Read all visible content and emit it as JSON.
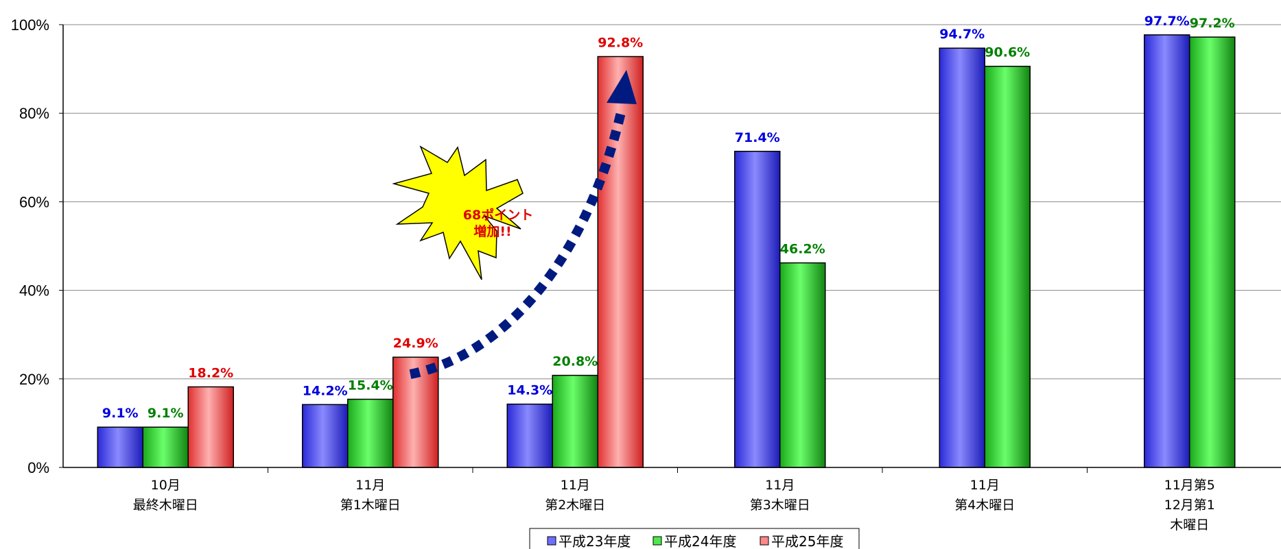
{
  "chart_data": {
    "type": "bar",
    "categories": [
      [
        "10月",
        "最終木曜日"
      ],
      [
        "11月",
        "第1木曜日"
      ],
      [
        "11月",
        "第2木曜日"
      ],
      [
        "11月",
        "第3木曜日"
      ],
      [
        "11月",
        "第4木曜日"
      ],
      [
        "11月第5",
        "12月第1",
        "木曜日"
      ]
    ],
    "series": [
      {
        "name": "平成23年度",
        "color": "#6f6fff",
        "values": [
          9.1,
          14.2,
          14.3,
          71.4,
          94.7,
          97.7
        ],
        "labels": [
          "9.1%",
          "14.2%",
          "14.3%",
          "71.4%",
          "94.7%",
          "97.7%"
        ],
        "label_color": "#0000dd"
      },
      {
        "name": "平成24年度",
        "color": "#4ce84c",
        "values": [
          9.1,
          15.4,
          20.8,
          46.2,
          90.6,
          97.2
        ],
        "labels": [
          "9.1%",
          "15.4%",
          "20.8%",
          "46.2%",
          "90.6%",
          "97.2%"
        ],
        "label_color": "#008000"
      },
      {
        "name": "平成25年度",
        "color": "#ff8888",
        "values": [
          18.2,
          24.9,
          92.8,
          null,
          null,
          null
        ],
        "labels": [
          "18.2%",
          "24.9%",
          "92.8%",
          "",
          "",
          ""
        ],
        "label_color": "#e00000"
      }
    ],
    "y_ticks": [
      "0%",
      "20%",
      "40%",
      "60%",
      "80%",
      "100%"
    ],
    "ylim": [
      0,
      100
    ],
    "grid": true,
    "legend": "bottom-center",
    "annotation": {
      "lines": [
        "68ポイント",
        "増加!!"
      ],
      "color": "#e00000",
      "burst_color": "#ffff00",
      "arrow_color": "#001a80"
    }
  }
}
